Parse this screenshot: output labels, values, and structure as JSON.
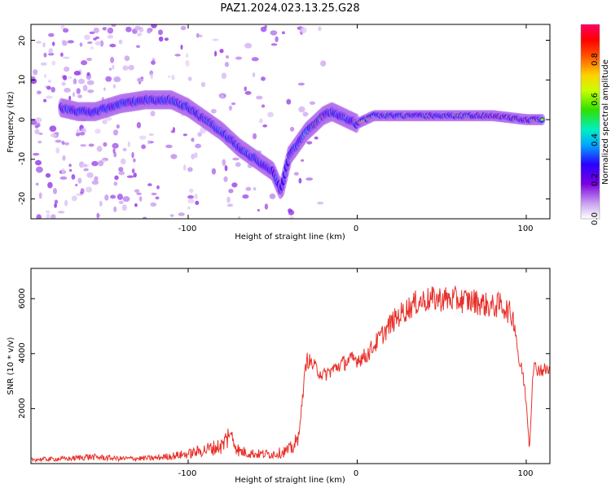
{
  "title": "PAZ1.2024.023.13.25.G28",
  "chart_data": [
    {
      "type": "heatmap",
      "xlabel": "Height of straight line (km)",
      "ylabel": "Frequency (Hz)",
      "xlim": [
        -193,
        114
      ],
      "ylim": [
        -25,
        24
      ],
      "xticks": [
        "-100",
        "0",
        "100"
      ],
      "yticks": [
        "-20",
        "-10",
        "0",
        "10",
        "20"
      ],
      "colorbar": {
        "label": "Normalized spectral amplitude",
        "range": [
          0,
          1
        ],
        "ticks": [
          "0.0",
          "0.2",
          "0.4",
          "0.6",
          "0.8"
        ],
        "colormap": [
          "#ffffff",
          "#c9a0f0",
          "#7a00e0",
          "#2a00ff",
          "#00a8ff",
          "#00f0c0",
          "#30e000",
          "#c8ff00",
          "#ffd000",
          "#ff5000",
          "#ff0000",
          "#ff0066"
        ]
      },
      "ridge": {
        "x": [
          -175,
          -165,
          -155,
          -140,
          -125,
          -110,
          -100,
          -90,
          -80,
          -70,
          -60,
          -50,
          -45,
          -40,
          -35,
          -30,
          -25,
          -20,
          -15,
          -10,
          -5,
          0,
          5,
          10,
          20,
          40,
          60,
          80,
          100,
          110
        ],
        "y": [
          3,
          2,
          2,
          4,
          5,
          5,
          3,
          0,
          -3,
          -7,
          -10,
          -13,
          -18,
          -9,
          -6,
          -3,
          -1,
          1,
          2,
          1,
          0,
          -1,
          0,
          1,
          1,
          1,
          1,
          1,
          0,
          0
        ],
        "peak_amplitude": [
          0.45,
          0.35,
          0.3,
          0.35,
          0.45,
          0.45,
          0.45,
          0.5,
          0.4,
          0.35,
          0.4,
          0.35,
          0.3,
          0.35,
          0.5,
          0.45,
          0.55,
          0.95,
          0.6,
          0.5,
          0.45,
          0.95,
          0.5,
          0.6,
          0.7,
          0.65,
          0.65,
          0.9,
          0.95,
          0.6
        ]
      }
    },
    {
      "type": "line",
      "xlabel": "Height of straight line (km)",
      "ylabel": "SNR (10 * v/v)",
      "xlim": [
        -193,
        114
      ],
      "ylim": [
        0,
        7100
      ],
      "xticks": [
        "-100",
        "0",
        "100"
      ],
      "yticks": [
        "2000",
        "4000",
        "6000"
      ],
      "color": "#e8302a",
      "series": [
        {
          "x": [
            -193,
            -170,
            -160,
            -140,
            -120,
            -100,
            -90,
            -80,
            -75,
            -70,
            -60,
            -50,
            -45,
            -40,
            -35,
            -30,
            -28,
            -25,
            -20,
            -15,
            -10,
            -5,
            0,
            5,
            10,
            15,
            20,
            25,
            30,
            35,
            40,
            50,
            60,
            70,
            80,
            85,
            90,
            93,
            96,
            98,
            100,
            102,
            104,
            110,
            114
          ],
          "y": [
            150,
            180,
            250,
            180,
            200,
            350,
            500,
            650,
            1100,
            450,
            350,
            350,
            400,
            500,
            800,
            3800,
            3700,
            3500,
            3200,
            3400,
            3600,
            3750,
            3800,
            3900,
            4300,
            4700,
            5100,
            5400,
            5650,
            5850,
            5950,
            6000,
            5950,
            5900,
            5700,
            5800,
            5500,
            5200,
            3600,
            3300,
            2200,
            600,
            3500,
            3400,
            3400
          ]
        }
      ]
    }
  ]
}
